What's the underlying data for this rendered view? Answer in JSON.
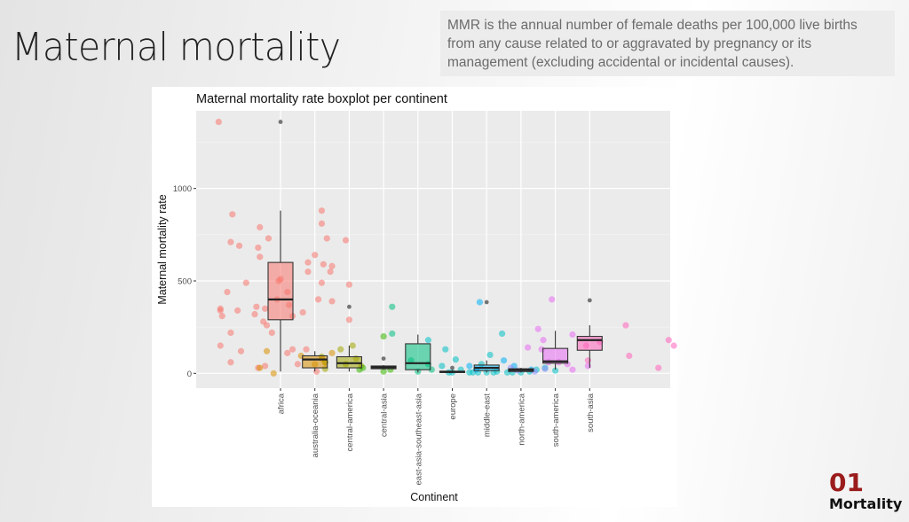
{
  "slide": {
    "title": "Maternal mortality",
    "definition": "MMR is the annual number of female deaths per 100,000 live births from any cause related to or aggravated by pregnancy or its management (excluding accidental or incidental causes).",
    "section_number": "01",
    "section_label": "Mortality",
    "accent_color": "#9b1c1c"
  },
  "chart_data": {
    "type": "boxplot",
    "title": "Maternal mortality rate boxplot per continent",
    "xlabel": "Continent",
    "ylabel": "Maternal mortality rate",
    "ylim": [
      -80,
      1420
    ],
    "yticks": [
      0,
      500,
      1000
    ],
    "grid": true,
    "legend": "none",
    "categories": [
      "africa",
      "australia-oceania",
      "central-america",
      "central-asia",
      "east-asia-southeast-asia",
      "europe",
      "middle-east",
      "north-america",
      "south-america",
      "south-asia"
    ],
    "colors": [
      "#f8766d",
      "#d89000",
      "#a3a500",
      "#39b600",
      "#00bf7d",
      "#00bfc4",
      "#00b0f6",
      "#9590ff",
      "#e76bf3",
      "#ff62bc"
    ],
    "boxes": [
      {
        "category": "africa",
        "low": 10,
        "q1": 290,
        "median": 400,
        "q3": 600,
        "high": 880,
        "outliers": [
          1360
        ]
      },
      {
        "category": "australia-oceania",
        "low": 10,
        "q1": 30,
        "median": 75,
        "q3": 95,
        "high": 120,
        "outliers": []
      },
      {
        "category": "central-america",
        "low": 10,
        "q1": 30,
        "median": 55,
        "q3": 90,
        "high": 150,
        "outliers": [
          360
        ]
      },
      {
        "category": "central-asia",
        "low": 20,
        "q1": 25,
        "median": 33,
        "q3": 40,
        "high": 45,
        "outliers": [
          80
        ]
      },
      {
        "category": "east-asia-southeast-asia",
        "low": 5,
        "q1": 20,
        "median": 55,
        "q3": 160,
        "high": 210,
        "outliers": []
      },
      {
        "category": "europe",
        "low": 2,
        "q1": 5,
        "median": 8,
        "q3": 12,
        "high": 18,
        "outliers": [
          30
        ]
      },
      {
        "category": "middle-east",
        "low": 5,
        "q1": 15,
        "median": 30,
        "q3": 45,
        "high": 70,
        "outliers": [
          385
        ]
      },
      {
        "category": "north-america",
        "low": 5,
        "q1": 10,
        "median": 18,
        "q3": 25,
        "high": 30,
        "outliers": []
      },
      {
        "category": "south-america",
        "low": 20,
        "q1": 55,
        "median": 65,
        "q3": 135,
        "high": 230,
        "outliers": []
      },
      {
        "category": "south-asia",
        "low": 30,
        "q1": 125,
        "median": 180,
        "q3": 200,
        "high": 260,
        "outliers": [
          395
        ]
      }
    ],
    "jitter_points": [
      {
        "group": 0,
        "x": -1.8,
        "y": 1360
      },
      {
        "group": 0,
        "x": -1.4,
        "y": 860
      },
      {
        "group": 0,
        "x": -1.45,
        "y": 710
      },
      {
        "group": 0,
        "x": -1.2,
        "y": 690
      },
      {
        "group": 0,
        "x": -0.6,
        "y": 790
      },
      {
        "group": 0,
        "x": -0.35,
        "y": 730
      },
      {
        "group": 0,
        "x": -0.65,
        "y": 680
      },
      {
        "group": 0,
        "x": -0.6,
        "y": 630
      },
      {
        "group": 0,
        "x": -1.0,
        "y": 490
      },
      {
        "group": 0,
        "x": -1.55,
        "y": 440
      },
      {
        "group": 0,
        "x": -1.75,
        "y": 350
      },
      {
        "group": 0,
        "x": -1.75,
        "y": 340
      },
      {
        "group": 0,
        "x": -1.25,
        "y": 340
      },
      {
        "group": 0,
        "x": -1.7,
        "y": 310
      },
      {
        "group": 0,
        "x": -0.75,
        "y": 320
      },
      {
        "group": 0,
        "x": -0.7,
        "y": 360
      },
      {
        "group": 0,
        "x": -0.45,
        "y": 350
      },
      {
        "group": 0,
        "x": -0.5,
        "y": 280
      },
      {
        "group": 0,
        "x": -0.4,
        "y": 260
      },
      {
        "group": 0,
        "x": -0.25,
        "y": 220
      },
      {
        "group": 0,
        "x": -1.45,
        "y": 220
      },
      {
        "group": 0,
        "x": -1.75,
        "y": 150
      },
      {
        "group": 0,
        "x": -1.15,
        "y": 120
      },
      {
        "group": 0,
        "x": -1.45,
        "y": 60
      },
      {
        "group": 0,
        "x": -0.65,
        "y": 30
      },
      {
        "group": 0,
        "x": -0.45,
        "y": 40
      },
      {
        "group": 0,
        "x": -0.05,
        "y": 500
      },
      {
        "group": 0,
        "x": 0.0,
        "y": 510
      },
      {
        "group": 0,
        "x": 0.2,
        "y": 440
      },
      {
        "group": 0,
        "x": 0.25,
        "y": 370
      },
      {
        "group": 0,
        "x": -0.1,
        "y": 400
      },
      {
        "group": 0,
        "x": 0.35,
        "y": 310
      },
      {
        "group": 0,
        "x": 0.65,
        "y": 330
      },
      {
        "group": 0,
        "x": 0.35,
        "y": 130
      },
      {
        "group": 0,
        "x": 0.2,
        "y": 110
      },
      {
        "group": 0,
        "x": 0.5,
        "y": 50
      },
      {
        "group": 0,
        "x": 0.75,
        "y": 130
      },
      {
        "group": 0,
        "x": 1.2,
        "y": 880
      },
      {
        "group": 0,
        "x": 1.2,
        "y": 810
      },
      {
        "group": 0,
        "x": 1.35,
        "y": 730
      },
      {
        "group": 0,
        "x": 1.0,
        "y": 640
      },
      {
        "group": 0,
        "x": 0.8,
        "y": 600
      },
      {
        "group": 0,
        "x": 1.25,
        "y": 590
      },
      {
        "group": 0,
        "x": 1.5,
        "y": 580
      },
      {
        "group": 0,
        "x": 0.8,
        "y": 550
      },
      {
        "group": 0,
        "x": 1.45,
        "y": 550
      },
      {
        "group": 0,
        "x": 1.2,
        "y": 490
      },
      {
        "group": 0,
        "x": 1.1,
        "y": 400
      },
      {
        "group": 0,
        "x": 1.5,
        "y": 390
      },
      {
        "group": 0,
        "x": 1.9,
        "y": 720
      },
      {
        "group": 0,
        "x": 2.0,
        "y": 480
      },
      {
        "group": 0,
        "x": 2.0,
        "y": 290
      },
      {
        "group": 0,
        "x": 1.05,
        "y": 10
      },
      {
        "group": 1,
        "x": -1.4,
        "y": 120
      },
      {
        "group": 1,
        "x": -1.2,
        "y": 0
      },
      {
        "group": 1,
        "x": -1.6,
        "y": 30
      },
      {
        "group": 1,
        "x": -0.4,
        "y": 95
      },
      {
        "group": 1,
        "x": 0.0,
        "y": 50
      },
      {
        "group": 1,
        "x": 0.2,
        "y": 80
      },
      {
        "group": 1,
        "x": 0.5,
        "y": 110
      },
      {
        "group": 2,
        "x": -0.8,
        "y": 90
      },
      {
        "group": 2,
        "x": -0.7,
        "y": 60
      },
      {
        "group": 2,
        "x": -0.7,
        "y": 25
      },
      {
        "group": 2,
        "x": -0.25,
        "y": 130
      },
      {
        "group": 2,
        "x": 0.1,
        "y": 150
      },
      {
        "group": 2,
        "x": -0.7,
        "y": 60
      },
      {
        "group": 2,
        "x": 0.2,
        "y": 80
      },
      {
        "group": 2,
        "x": 0.35,
        "y": 40
      },
      {
        "group": 2,
        "x": -0.1,
        "y": 50
      },
      {
        "group": 3,
        "x": 0.0,
        "y": 200
      },
      {
        "group": 3,
        "x": -0.7,
        "y": 20
      },
      {
        "group": 3,
        "x": -0.6,
        "y": 30
      },
      {
        "group": 3,
        "x": 0.0,
        "y": 10
      },
      {
        "group": 3,
        "x": 0.2,
        "y": 20
      },
      {
        "group": 4,
        "x": -0.75,
        "y": 215
      },
      {
        "group": 4,
        "x": -0.75,
        "y": 360
      },
      {
        "group": 4,
        "x": -0.2,
        "y": 70
      },
      {
        "group": 4,
        "x": 0.0,
        "y": 10
      },
      {
        "group": 4,
        "x": 0.3,
        "y": 50
      },
      {
        "group": 4,
        "x": 0.4,
        "y": 20
      },
      {
        "group": 5,
        "x": -0.7,
        "y": 180
      },
      {
        "group": 5,
        "x": -0.2,
        "y": 130
      },
      {
        "group": 5,
        "x": 0.25,
        "y": 20
      },
      {
        "group": 5,
        "x": 0.1,
        "y": 75
      },
      {
        "group": 5,
        "x": -0.3,
        "y": 40
      },
      {
        "group": 5,
        "x": 0.5,
        "y": 5
      },
      {
        "group": 5,
        "x": 0.6,
        "y": 5
      },
      {
        "group": 5,
        "x": 0.85,
        "y": 50
      },
      {
        "group": 5,
        "x": 1.1,
        "y": 100
      },
      {
        "group": 5,
        "x": 1.45,
        "y": 215
      },
      {
        "group": 5,
        "x": -0.1,
        "y": 5
      },
      {
        "group": 5,
        "x": 0.0,
        "y": 5
      },
      {
        "group": 5,
        "x": 0.75,
        "y": 5
      },
      {
        "group": 5,
        "x": 1.0,
        "y": 5
      },
      {
        "group": 5,
        "x": 1.2,
        "y": 5
      },
      {
        "group": 5,
        "x": 1.3,
        "y": 10
      },
      {
        "group": 5,
        "x": 1.6,
        "y": 5
      },
      {
        "group": 5,
        "x": 1.75,
        "y": 5
      },
      {
        "group": 5,
        "x": 2.0,
        "y": 5
      },
      {
        "group": 5,
        "x": 2.25,
        "y": 10
      },
      {
        "group": 5,
        "x": 2.45,
        "y": 20
      },
      {
        "group": 5,
        "x": 2.7,
        "y": 30
      },
      {
        "group": 5,
        "x": 3.0,
        "y": 15
      },
      {
        "group": 6,
        "x": -0.5,
        "y": 40
      },
      {
        "group": 6,
        "x": -0.3,
        "y": 20
      },
      {
        "group": 6,
        "x": -0.2,
        "y": 385
      },
      {
        "group": 6,
        "x": 0.5,
        "y": 70
      },
      {
        "group": 6,
        "x": 0.8,
        "y": 40
      },
      {
        "group": 6,
        "x": 1.3,
        "y": 20
      },
      {
        "group": 7,
        "x": -0.3,
        "y": 30
      },
      {
        "group": 7,
        "x": -0.1,
        "y": 15
      },
      {
        "group": 7,
        "x": 0.4,
        "y": 10
      },
      {
        "group": 7,
        "x": 0.7,
        "y": 25
      },
      {
        "group": 8,
        "x": -0.2,
        "y": 60
      },
      {
        "group": 8,
        "x": -0.5,
        "y": 240
      },
      {
        "group": 8,
        "x": -0.35,
        "y": 180
      },
      {
        "group": 8,
        "x": -0.1,
        "y": 400
      },
      {
        "group": 8,
        "x": -0.8,
        "y": 140
      },
      {
        "group": 8,
        "x": -0.4,
        "y": 130
      },
      {
        "group": 8,
        "x": 0.1,
        "y": 60
      },
      {
        "group": 8,
        "x": 0.35,
        "y": 50
      },
      {
        "group": 8,
        "x": 0.5,
        "y": 20
      },
      {
        "group": 8,
        "x": 0.5,
        "y": 210
      },
      {
        "group": 8,
        "x": 0.95,
        "y": 40
      },
      {
        "group": 9,
        "x": -0.05,
        "y": 70
      },
      {
        "group": 9,
        "x": -0.1,
        "y": 150
      },
      {
        "group": 9,
        "x": 0.3,
        "y": 170
      },
      {
        "group": 9,
        "x": 1.05,
        "y": 260
      },
      {
        "group": 9,
        "x": 1.15,
        "y": 95
      },
      {
        "group": 9,
        "x": 2.3,
        "y": 180
      },
      {
        "group": 9,
        "x": 2.45,
        "y": 150
      },
      {
        "group": 9,
        "x": 2.0,
        "y": 30
      }
    ]
  }
}
